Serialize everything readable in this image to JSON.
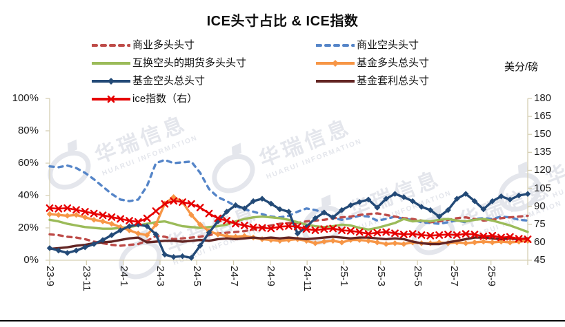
{
  "watermark": {
    "cn": "华瑞信息",
    "en": "HUARUI INFORMATION"
  },
  "chart_data": {
    "type": "line",
    "title": "ICE头寸占比 & ICE指数",
    "right_axis_unit": "美分/磅",
    "legend_position": "top",
    "grid": false,
    "axis_color": "#D6D0B4",
    "x_labels": [
      "23-9",
      "23-11",
      "24-1",
      "24-3",
      "24-5",
      "24-7",
      "24-9",
      "24-11",
      "25-1",
      "25-3",
      "25-5",
      "25-7",
      "25-9"
    ],
    "y_left": {
      "min": 0,
      "max": 100,
      "ticks": [
        "100%",
        "80%",
        "60%",
        "40%",
        "20%",
        "0%"
      ]
    },
    "y_right": {
      "min": 45,
      "max": 180,
      "ticks": [
        "180",
        "165",
        "150",
        "135",
        "120",
        "105",
        "90",
        "75",
        "60",
        "45"
      ]
    },
    "series": [
      {
        "name": "商业多头头寸",
        "color": "#BE4B48",
        "axis": "left",
        "line_style": "dash",
        "marker": "none",
        "values": [
          16,
          15.5,
          14.5,
          14,
          13,
          11.5,
          10.5,
          9.5,
          9,
          9.5,
          10,
          12,
          15,
          14.5,
          13,
          13.5,
          14,
          14.5,
          15.5,
          16.5,
          17,
          17.5,
          18,
          19,
          20.5,
          21.5,
          22.5,
          23,
          23,
          24,
          24.5,
          25,
          26,
          26.5,
          27,
          28,
          28.5,
          29,
          28,
          27,
          26,
          25.5,
          24.5,
          23.5,
          24,
          25,
          26,
          26.5,
          25.5,
          24.5,
          25,
          26,
          26.5,
          27,
          27.5
        ]
      },
      {
        "name": "商业空头头寸",
        "color": "#5585C8",
        "axis": "left",
        "line_style": "dash",
        "marker": "none",
        "values": [
          58,
          57.5,
          58.5,
          57,
          54,
          50,
          45.5,
          41,
          37.5,
          36.5,
          37.5,
          46,
          60,
          62,
          60,
          60.5,
          61,
          54,
          44,
          39,
          36.5,
          33.5,
          31.5,
          30,
          28.5,
          27,
          26.5,
          27.5,
          30,
          32,
          31,
          29.5,
          26,
          25,
          26,
          27.5,
          27,
          24.5,
          25.5,
          27,
          25.5,
          25,
          23.5,
          23,
          22.5,
          23.5,
          24.5,
          23.5,
          25.5,
          26,
          25.5,
          27,
          26.5,
          25,
          24.5
        ]
      },
      {
        "name": "互换空头的期货多头头寸",
        "color": "#9BBB59",
        "axis": "left",
        "line_style": "solid",
        "marker": "none",
        "values": [
          25,
          24,
          22.5,
          21.5,
          20.5,
          20,
          19.5,
          19.5,
          20,
          20.5,
          21.5,
          22.5,
          23.5,
          24,
          22.5,
          21,
          20.5,
          20,
          20.5,
          21,
          22,
          24,
          25.5,
          26.5,
          27,
          26.5,
          26,
          25,
          23.5,
          22,
          21,
          20.5,
          21,
          22,
          21.5,
          20,
          19,
          20,
          21.5,
          23,
          25.5,
          24,
          24.5,
          24,
          25,
          25.5,
          24.5,
          24,
          25,
          25.5,
          24.5,
          23,
          21.5,
          19.5,
          17.5
        ]
      },
      {
        "name": "基金多头总头寸",
        "color": "#F79646",
        "axis": "left",
        "line_style": "solid",
        "marker": "diamond",
        "values": [
          28.5,
          28,
          27.5,
          28,
          26.5,
          25,
          24,
          22.5,
          20.5,
          18.5,
          16.5,
          15.5,
          22,
          35,
          39,
          36,
          28,
          22,
          18,
          16,
          15,
          14.5,
          15,
          14,
          13,
          12.5,
          12,
          12.5,
          13,
          12,
          10.5,
          11.5,
          12,
          11,
          12.5,
          12.5,
          12,
          11,
          10,
          10.5,
          10,
          11,
          10.5,
          10.5,
          11,
          10.5,
          11,
          10.5,
          11,
          11.5,
          11,
          11.5,
          11,
          11.5,
          12
        ]
      },
      {
        "name": "基金空头总头寸",
        "color": "#234A77",
        "axis": "left",
        "line_style": "solid",
        "marker": "diamond",
        "values": [
          7.5,
          6,
          4.5,
          6,
          8,
          10,
          12.5,
          15.5,
          18.5,
          21,
          22,
          21,
          16,
          3.5,
          2,
          2.5,
          1.5,
          9,
          17,
          24,
          30,
          34,
          32,
          36.5,
          38,
          35,
          31.5,
          30,
          16.5,
          20.5,
          26,
          29.5,
          26.5,
          31,
          34,
          36,
          37.5,
          32.5,
          38,
          41,
          39,
          36.5,
          33,
          31,
          27,
          31,
          38,
          41,
          36.5,
          31.5,
          36.5,
          39.5,
          37.5,
          40,
          41
        ]
      },
      {
        "name": "基金套利总头寸",
        "color": "#632523",
        "axis": "left",
        "line_style": "solid",
        "marker": "none",
        "values": [
          7,
          7.5,
          8,
          9,
          9.5,
          10.5,
          11,
          11.5,
          12.5,
          13.5,
          14,
          11,
          11.5,
          12,
          12,
          11.5,
          12,
          12.5,
          12,
          13,
          13.5,
          13,
          13.5,
          14,
          13.5,
          14,
          13.5,
          14,
          13.5,
          13,
          13.5,
          14,
          14.5,
          14,
          13.5,
          14,
          14,
          13.5,
          13,
          13.5,
          13,
          11.5,
          10.5,
          10,
          10,
          11,
          12,
          13,
          14,
          14,
          13.5,
          13,
          13.5,
          13,
          13.5
        ]
      },
      {
        "name": "ice指数（右）",
        "color": "#E60000",
        "axis": "right",
        "line_style": "solid",
        "marker": "x",
        "values": [
          88.5,
          88,
          88.5,
          87,
          85.5,
          84,
          82.5,
          81,
          79.5,
          78,
          77,
          80,
          86,
          92,
          94.5,
          93.5,
          92,
          89,
          84,
          80,
          78,
          75.5,
          74,
          72.5,
          72,
          71.5,
          73,
          73.5,
          73,
          71,
          70,
          71,
          71.5,
          70,
          69.5,
          68.5,
          67,
          68,
          68.5,
          67.5,
          66.5,
          67,
          66,
          65.5,
          66,
          66.5,
          66,
          67,
          66.5,
          65,
          65.5,
          64,
          64.5,
          63,
          62.5
        ]
      }
    ]
  }
}
